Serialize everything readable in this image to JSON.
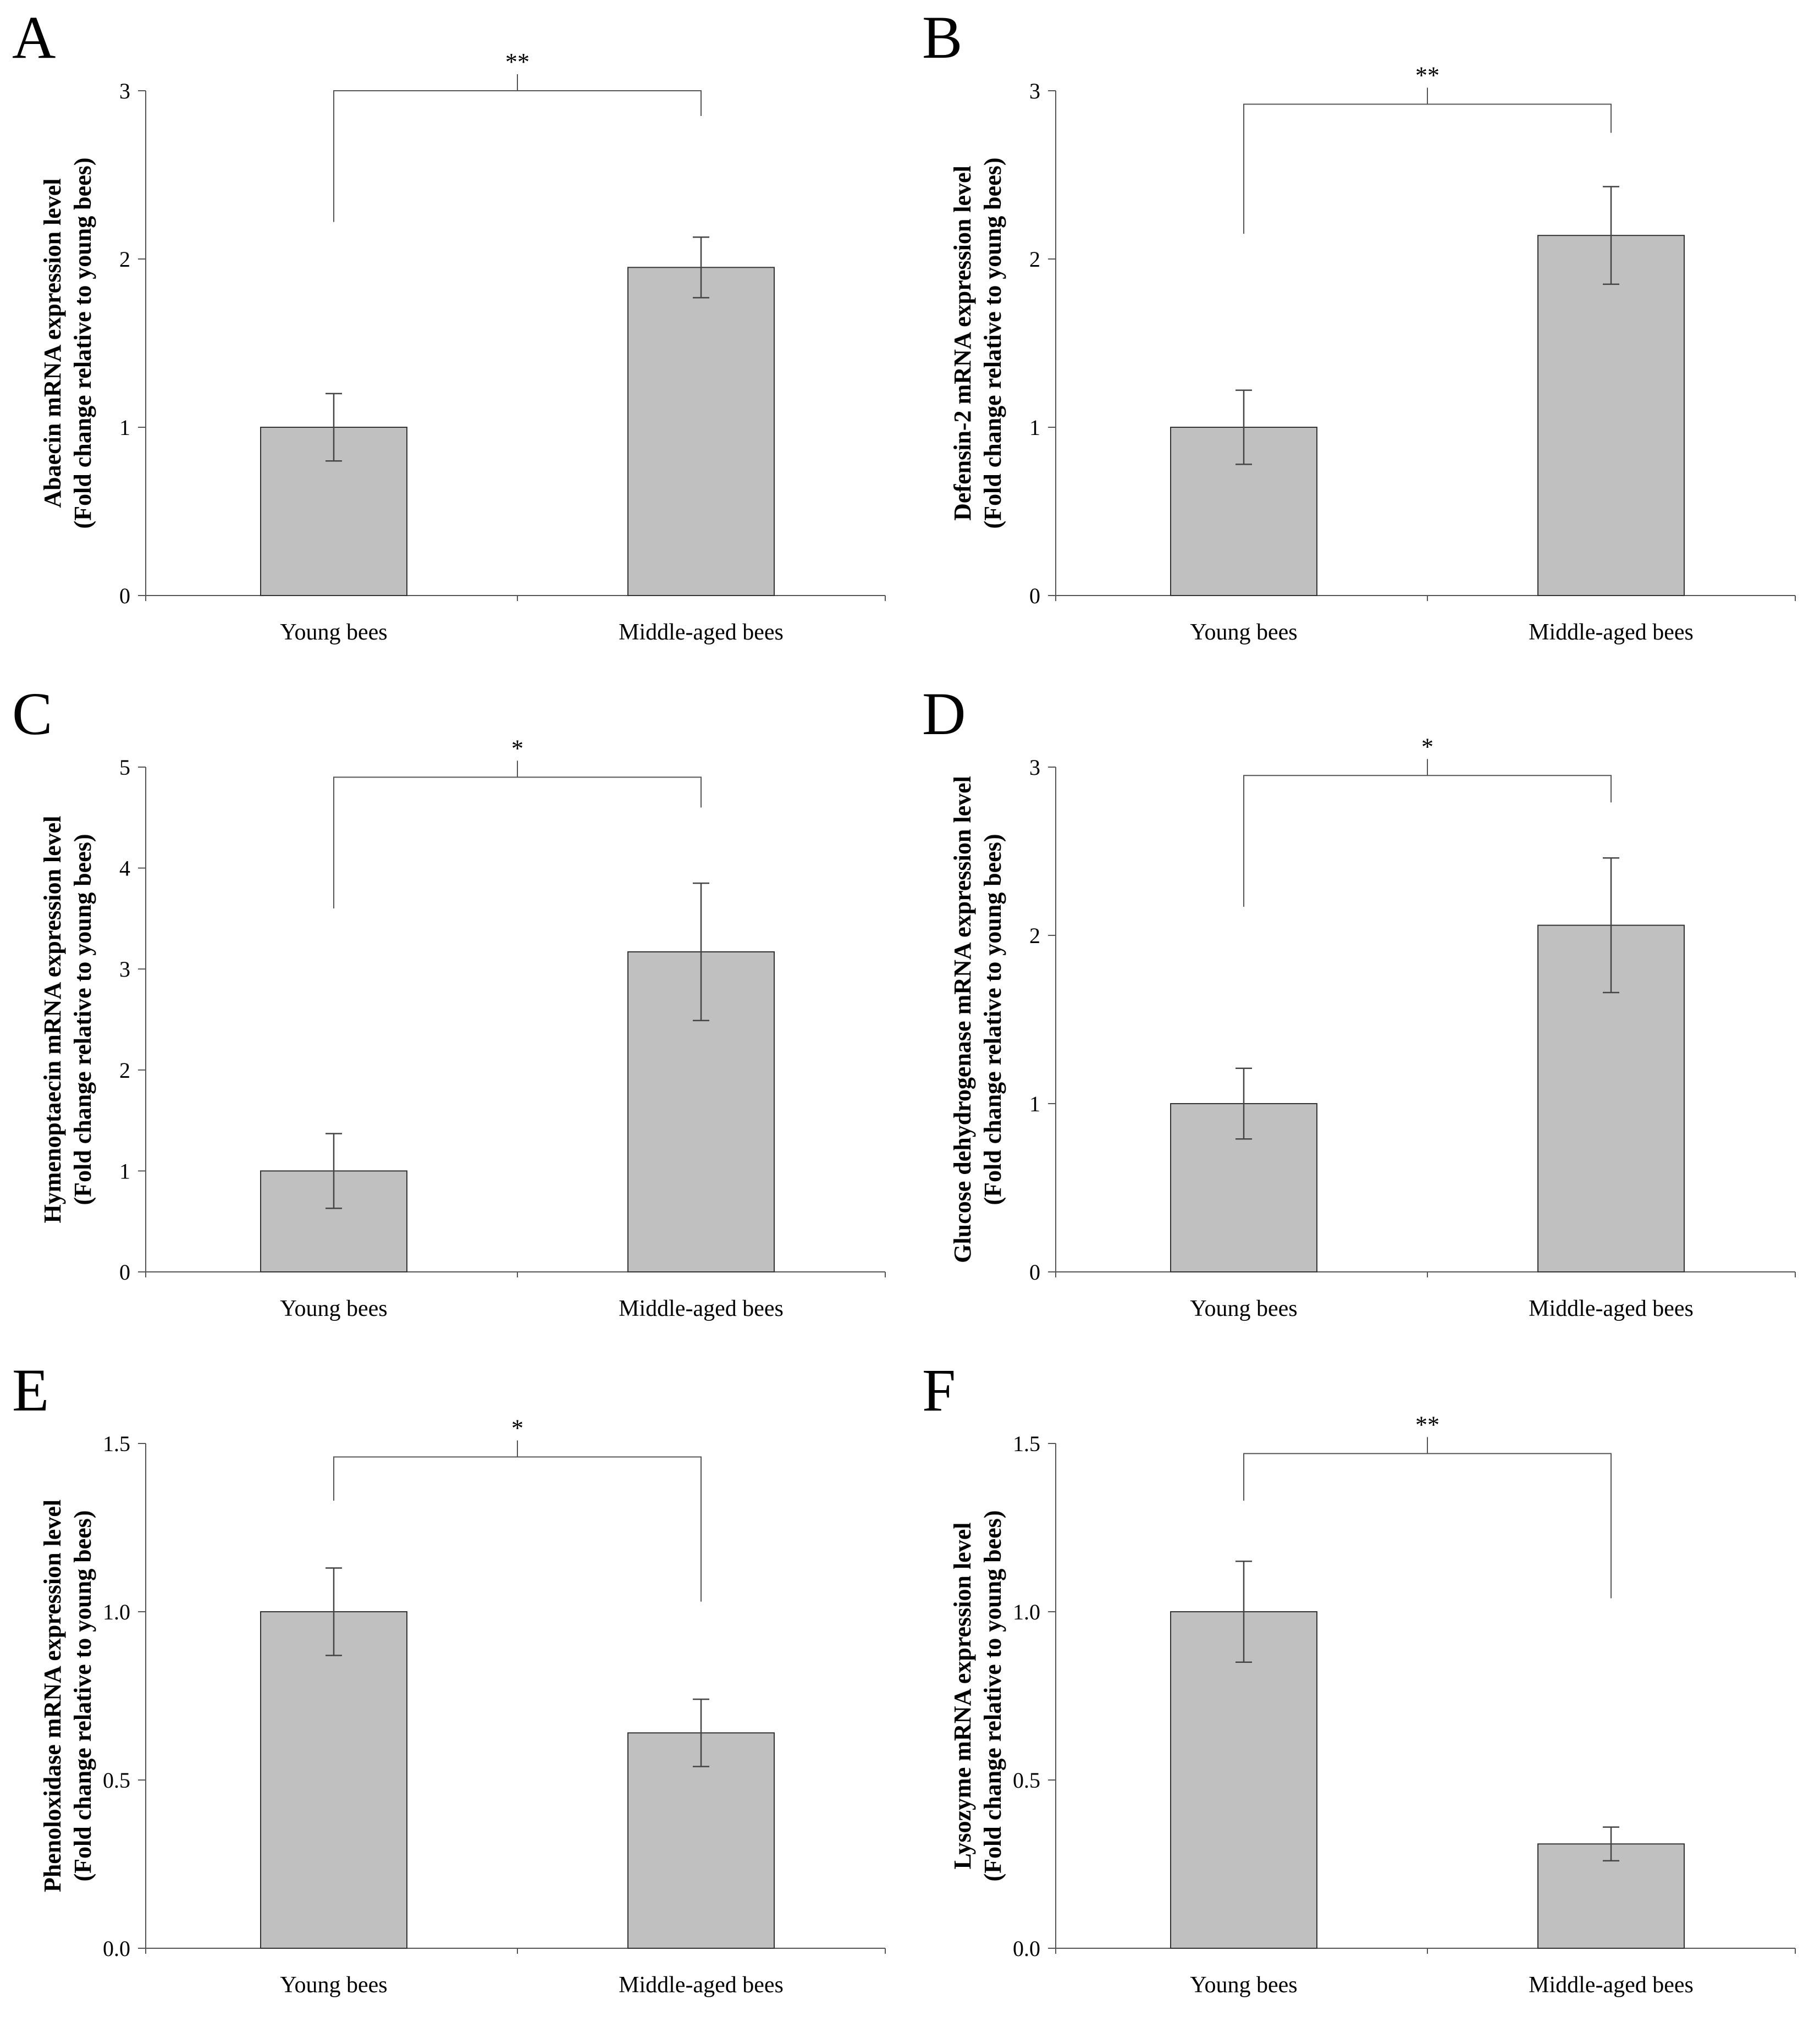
{
  "colors": {
    "bar_fill": "#c0c0c0",
    "bar_stroke": "#333333",
    "axis": "#555555",
    "text": "#000000"
  },
  "chart_data": [
    {
      "panel": "A",
      "type": "bar",
      "categories": [
        "Young bees",
        "Middle-aged bees"
      ],
      "values": [
        1.0,
        1.95
      ],
      "errors": [
        0.2,
        0.18
      ],
      "ylabel_line1": "Abaecin mRNA expression level",
      "ylabel_line2": "(Fold change relative to young bees)",
      "ylim": [
        0,
        3
      ],
      "yticks": [
        "0",
        "1",
        "2",
        "3"
      ],
      "ytick_values": [
        0,
        1,
        2,
        3
      ],
      "significance": "**",
      "bracket_left_bottom": 2.22,
      "bracket_right_bottom": 2.85,
      "bracket_top": 3.0
    },
    {
      "panel": "B",
      "type": "bar",
      "categories": [
        "Young bees",
        "Middle-aged bees"
      ],
      "values": [
        1.0,
        2.14
      ],
      "errors": [
        0.22,
        0.29
      ],
      "ylabel_line1": "Defensin-2 mRNA expression level",
      "ylabel_line2": "(Fold change relative to young bees)",
      "ylim": [
        0,
        3
      ],
      "yticks": [
        "0",
        "1",
        "2",
        "3"
      ],
      "ytick_values": [
        0,
        1,
        2,
        3
      ],
      "significance": "**",
      "bracket_left_bottom": 2.15,
      "bracket_right_bottom": 2.75,
      "bracket_top": 2.92
    },
    {
      "panel": "C",
      "type": "bar",
      "categories": [
        "Young bees",
        "Middle-aged bees"
      ],
      "values": [
        1.0,
        3.17
      ],
      "errors": [
        0.37,
        0.68
      ],
      "ylabel_line1": "Hymenoptaecin mRNA expression level",
      "ylabel_line2": "(Fold change relative to young bees)",
      "ylim": [
        0,
        5
      ],
      "yticks": [
        "0",
        "1",
        "2",
        "3",
        "4",
        "5"
      ],
      "ytick_values": [
        0,
        1,
        2,
        3,
        4,
        5
      ],
      "significance": "*",
      "bracket_left_bottom": 3.6,
      "bracket_right_bottom": 4.6,
      "bracket_top": 4.9
    },
    {
      "panel": "D",
      "type": "bar",
      "categories": [
        "Young bees",
        "Middle-aged bees"
      ],
      "values": [
        1.0,
        2.06
      ],
      "errors": [
        0.21,
        0.4
      ],
      "ylabel_line1": "Glucose dehydrogenase mRNA expression level",
      "ylabel_line2": "(Fold change relative to young bees)",
      "ylim": [
        0,
        3
      ],
      "yticks": [
        "0",
        "1",
        "2",
        "3"
      ],
      "ytick_values": [
        0,
        1,
        2,
        3
      ],
      "significance": "*",
      "bracket_left_bottom": 2.17,
      "bracket_right_bottom": 2.79,
      "bracket_top": 2.95
    },
    {
      "panel": "E",
      "type": "bar",
      "categories": [
        "Young bees",
        "Middle-aged bees"
      ],
      "values": [
        1.0,
        0.64
      ],
      "errors": [
        0.13,
        0.1
      ],
      "ylabel_line1": "Phenoloxidase mRNA expression level",
      "ylabel_line2": "(Fold change relative to young bees)",
      "ylim": [
        0,
        1.5
      ],
      "yticks": [
        "0.0",
        "0.5",
        "1.0",
        "1.5"
      ],
      "ytick_values": [
        0,
        0.5,
        1.0,
        1.5
      ],
      "significance": "*",
      "bracket_left_bottom": 1.33,
      "bracket_right_bottom": 1.03,
      "bracket_top": 1.46
    },
    {
      "panel": "F",
      "type": "bar",
      "categories": [
        "Young bees",
        "Middle-aged bees"
      ],
      "values": [
        1.0,
        0.31
      ],
      "errors": [
        0.15,
        0.05
      ],
      "ylabel_line1": "Lysozyme mRNA expression level",
      "ylabel_line2": "(Fold change relative to young bees)",
      "ylim": [
        0,
        1.5
      ],
      "yticks": [
        "0.0",
        "0.5",
        "1.0",
        "1.5"
      ],
      "ytick_values": [
        0,
        0.5,
        1.0,
        1.5
      ],
      "significance": "**",
      "bracket_left_bottom": 1.33,
      "bracket_right_bottom": 1.04,
      "bracket_top": 1.47
    }
  ]
}
